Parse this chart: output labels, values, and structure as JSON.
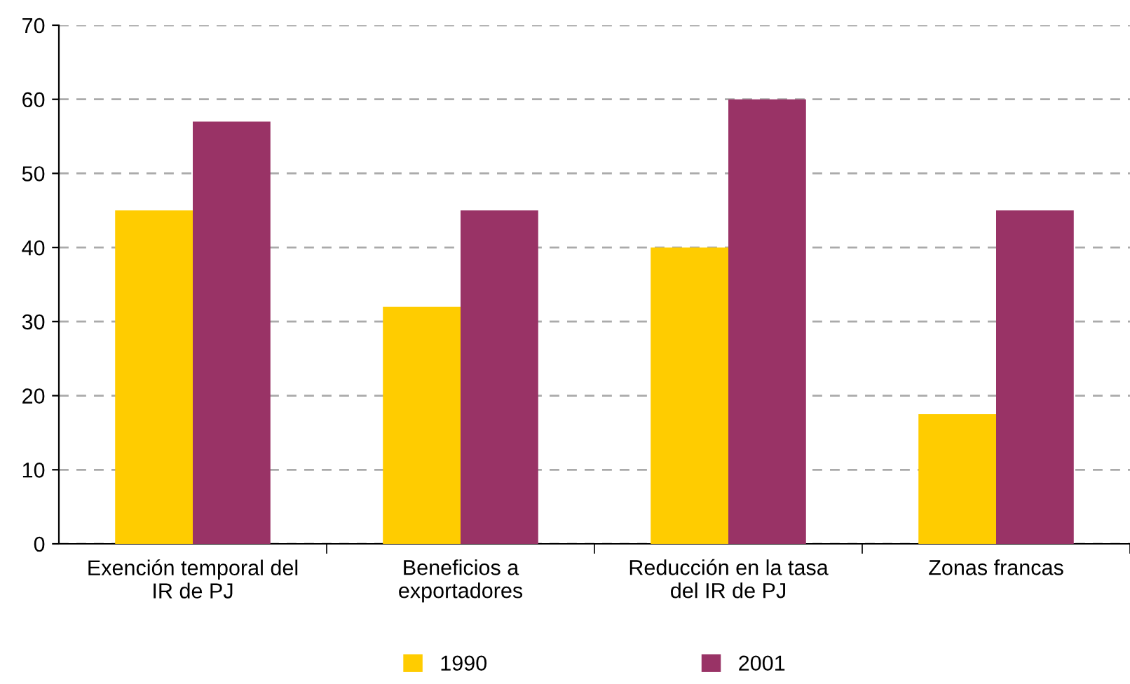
{
  "chart_data": {
    "type": "bar",
    "categories": [
      "Exención temporal del\nIR de PJ",
      "Beneficios a\nexportadores",
      "Reducción en la tasa\ndel IR de PJ",
      "Zonas francas"
    ],
    "series": [
      {
        "name": "1990",
        "color": "#ffcc00",
        "values": [
          45,
          32,
          40,
          17.5
        ]
      },
      {
        "name": "2001",
        "color": "#993366",
        "values": [
          57,
          45,
          60,
          45
        ]
      }
    ],
    "ylim": [
      0,
      70
    ],
    "yticks": [
      0,
      10,
      20,
      30,
      40,
      50,
      60,
      70
    ],
    "grid": "y",
    "legend": "bottom"
  }
}
